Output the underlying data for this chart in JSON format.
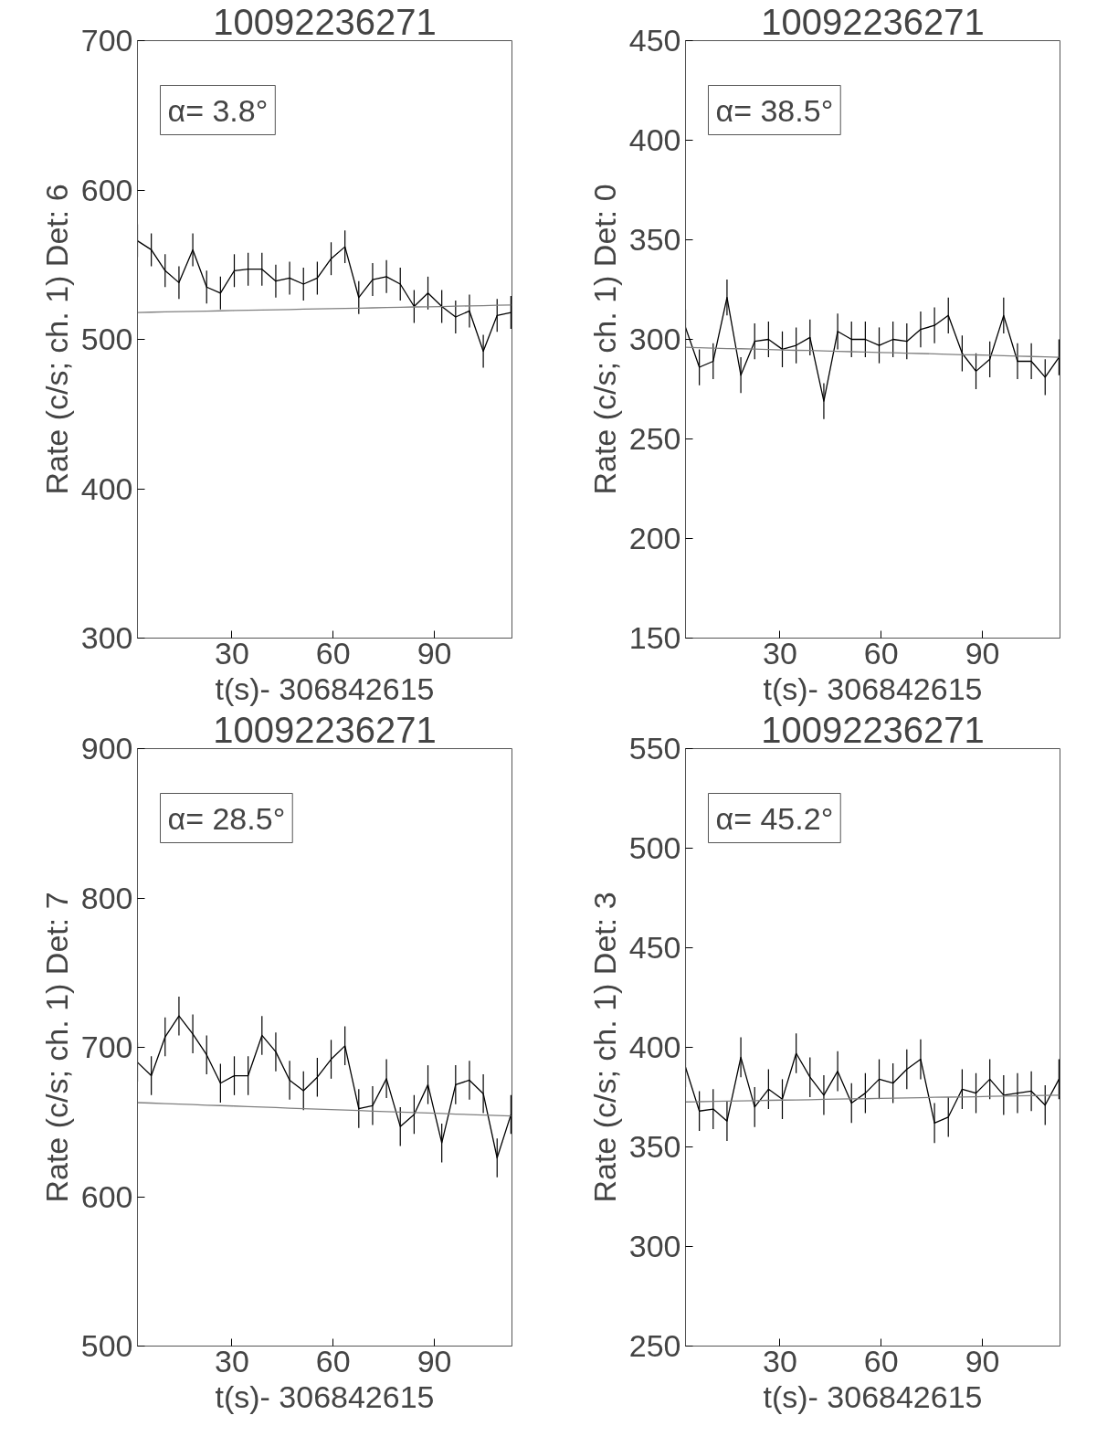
{
  "chart_data": [
    {
      "type": "line",
      "title": "10092236271",
      "xlabel": "t(s)- 306842615",
      "ylabel": "Rate (c/s; ch. 1) Det: 6",
      "annotations": [
        "α= 3.8°"
      ],
      "xlim": [
        2,
        113
      ],
      "xticks": [
        30,
        60,
        90
      ],
      "ylim": [
        300,
        700
      ],
      "yticks": [
        300,
        400,
        500,
        600,
        700
      ],
      "marker": "none",
      "line_style": "solid",
      "x": [
        2.0,
        6.1,
        10.2,
        14.3,
        18.4,
        22.5,
        26.6,
        30.7,
        34.8,
        38.9,
        43.0,
        47.1,
        51.2,
        55.3,
        59.4,
        63.5,
        67.6,
        71.7,
        75.8,
        79.9,
        84.0,
        88.1,
        92.2,
        96.3,
        100.4,
        104.5,
        108.6,
        112.7
      ],
      "series": [
        {
          "color": "#000000",
          "values": [
            566,
            560,
            546,
            538,
            560,
            535,
            531,
            546,
            547,
            547,
            539,
            541,
            537,
            541,
            554,
            562,
            528,
            540,
            542,
            537,
            522,
            531,
            522,
            515,
            519,
            492,
            516,
            518
          ],
          "errors": [
            11,
            11,
            11,
            11,
            11,
            11,
            11,
            11,
            11,
            11,
            11,
            11,
            11,
            11,
            11,
            11,
            11,
            11,
            11,
            11,
            11,
            11,
            11,
            11,
            11,
            11,
            11,
            11
          ]
        },
        {
          "color": "#808080",
          "values": [
            518.0,
            518.2,
            518.4,
            518.6,
            518.7,
            518.9,
            519.1,
            519.3,
            519.5,
            519.6,
            519.8,
            520.0,
            520.2,
            520.4,
            520.6,
            520.7,
            520.9,
            521.1,
            521.3,
            521.5,
            521.7,
            521.8,
            522.0,
            522.2,
            522.4,
            522.6,
            522.8,
            523.0
          ]
        }
      ]
    },
    {
      "type": "line",
      "title": "10092236271",
      "xlabel": "t(s)- 306842615",
      "ylabel": "Rate (c/s; ch. 1) Det: 0",
      "annotations": [
        "α= 38.5°"
      ],
      "xlim": [
        2,
        113
      ],
      "xticks": [
        30,
        60,
        90
      ],
      "ylim": [
        150,
        450
      ],
      "yticks": [
        150,
        200,
        250,
        300,
        350,
        400,
        450
      ],
      "marker": "none",
      "line_style": "solid",
      "x": [
        2.0,
        6.1,
        10.2,
        14.3,
        18.4,
        22.5,
        26.6,
        30.7,
        34.8,
        38.9,
        43.0,
        47.1,
        51.2,
        55.3,
        59.4,
        63.5,
        67.6,
        71.7,
        75.8,
        79.9,
        84.0,
        88.1,
        92.2,
        96.3,
        100.4,
        104.5,
        108.6,
        112.7
      ],
      "series": [
        {
          "color": "#000000",
          "values": [
            306,
            286,
            289,
            321,
            282,
            299,
            300,
            295,
            297,
            301,
            269,
            304,
            300,
            300,
            297,
            300,
            299,
            305,
            307,
            312,
            293,
            284,
            290,
            312,
            289,
            289,
            281,
            291
          ],
          "errors": [
            9,
            9,
            9,
            9,
            9,
            9,
            9,
            9,
            9,
            9,
            9,
            9,
            9,
            9,
            9,
            9,
            9,
            9,
            9,
            9,
            9,
            9,
            9,
            9,
            9,
            9,
            9,
            9
          ]
        },
        {
          "color": "#808080",
          "values": [
            296.0,
            295.8,
            295.6,
            295.4,
            295.3,
            295.1,
            294.9,
            294.7,
            294.5,
            294.4,
            294.2,
            294.0,
            293.8,
            293.6,
            293.4,
            293.3,
            293.1,
            292.9,
            292.7,
            292.5,
            292.3,
            292.2,
            292.0,
            291.8,
            291.6,
            291.4,
            291.2,
            291.0
          ]
        }
      ]
    },
    {
      "type": "line",
      "title": "10092236271",
      "xlabel": "t(s)- 306842615",
      "ylabel": "Rate (c/s; ch. 1) Det: 7",
      "annotations": [
        "α= 28.5°"
      ],
      "xlim": [
        2,
        113
      ],
      "xticks": [
        30,
        60,
        90
      ],
      "ylim": [
        500,
        900
      ],
      "yticks": [
        500,
        600,
        700,
        800,
        900
      ],
      "marker": "none",
      "line_style": "solid",
      "x": [
        2.0,
        6.1,
        10.2,
        14.3,
        18.4,
        22.5,
        26.6,
        30.7,
        34.8,
        38.9,
        43.0,
        47.1,
        51.2,
        55.3,
        59.4,
        63.5,
        67.6,
        71.7,
        75.8,
        79.9,
        84.0,
        88.1,
        92.2,
        96.3,
        100.4,
        104.5,
        108.6,
        112.7
      ],
      "series": [
        {
          "color": "#000000",
          "values": [
            690,
            681,
            707,
            721,
            709,
            695,
            676,
            681,
            681,
            708,
            697,
            678,
            671,
            680,
            692,
            701,
            659,
            661,
            679,
            647,
            655,
            675,
            636,
            675,
            678,
            669,
            626,
            655
          ],
          "errors": [
            13,
            13,
            13,
            13,
            13,
            13,
            13,
            13,
            13,
            13,
            13,
            13,
            13,
            13,
            13,
            13,
            13,
            13,
            13,
            13,
            13,
            13,
            13,
            13,
            13,
            13,
            13,
            13
          ]
        },
        {
          "color": "#808080",
          "values": [
            663.0,
            662.7,
            662.3,
            662.0,
            661.7,
            661.3,
            661.0,
            660.7,
            660.3,
            660.0,
            659.7,
            659.3,
            659.0,
            658.7,
            658.3,
            658.0,
            657.7,
            657.3,
            657.0,
            656.7,
            656.3,
            656.0,
            655.7,
            655.3,
            655.0,
            654.7,
            654.3,
            654.0
          ]
        }
      ]
    },
    {
      "type": "line",
      "title": "10092236271",
      "xlabel": "t(s)- 306842615",
      "ylabel": "Rate (c/s; ch. 1) Det: 3",
      "annotations": [
        "α= 45.2°"
      ],
      "xlim": [
        2,
        113
      ],
      "xticks": [
        30,
        60,
        90
      ],
      "ylim": [
        250,
        550
      ],
      "yticks": [
        250,
        300,
        350,
        400,
        450,
        500,
        550
      ],
      "marker": "none",
      "line_style": "solid",
      "x": [
        2.0,
        6.1,
        10.2,
        14.3,
        18.4,
        22.5,
        26.6,
        30.7,
        34.8,
        38.9,
        43.0,
        47.1,
        51.2,
        55.3,
        59.4,
        63.5,
        67.6,
        71.7,
        75.8,
        79.9,
        84.0,
        88.1,
        92.2,
        96.3,
        100.4,
        104.5,
        108.6,
        112.7
      ],
      "series": [
        {
          "color": "#000000",
          "values": [
            390,
            368,
            369,
            363,
            395,
            370,
            379,
            374,
            397,
            385,
            376,
            388,
            372,
            377,
            384,
            382,
            389,
            394,
            362,
            365,
            379,
            377,
            384,
            376,
            377,
            378,
            371,
            384
          ],
          "errors": [
            10,
            10,
            10,
            10,
            10,
            10,
            10,
            10,
            10,
            10,
            10,
            10,
            10,
            10,
            10,
            10,
            10,
            10,
            10,
            10,
            10,
            10,
            10,
            10,
            10,
            10,
            10,
            10
          ]
        },
        {
          "color": "#808080",
          "values": [
            372.6,
            372.7,
            372.9,
            373.0,
            373.1,
            373.2,
            373.4,
            373.5,
            373.6,
            373.7,
            373.9,
            374.0,
            374.1,
            374.2,
            374.4,
            374.5,
            374.6,
            374.7,
            374.9,
            375.0,
            375.1,
            375.2,
            375.4,
            375.5,
            375.6,
            375.7,
            375.9,
            376.0
          ]
        }
      ]
    }
  ]
}
